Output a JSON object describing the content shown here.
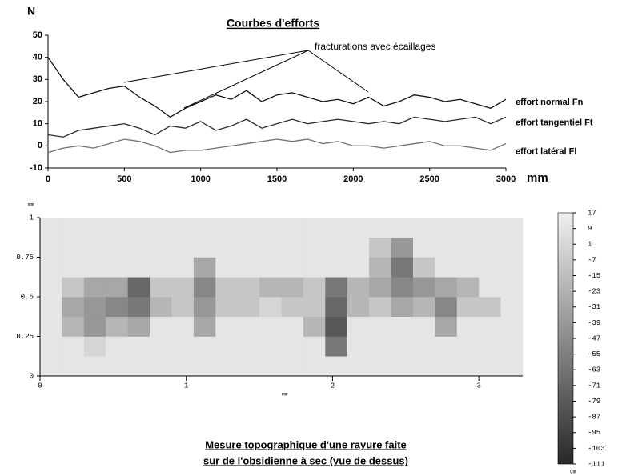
{
  "chart_data": [
    {
      "type": "line",
      "title": "Courbes d'efforts",
      "ylabel": "N",
      "xlabel": "mm",
      "annotation": "fracturations avec écaillages",
      "x": [
        0,
        100,
        200,
        300,
        400,
        500,
        600,
        700,
        800,
        900,
        1000,
        1100,
        1200,
        1300,
        1400,
        1500,
        1600,
        1700,
        1800,
        1900,
        2000,
        2100,
        2200,
        2300,
        2400,
        2500,
        2600,
        2700,
        2800,
        2900,
        3000
      ],
      "series": [
        {
          "name": "effort normal Fn",
          "color": "#111111",
          "values": [
            40,
            30,
            22,
            24,
            26,
            27,
            22,
            18,
            13,
            17,
            20,
            23,
            21,
            25,
            20,
            23,
            24,
            22,
            20,
            21,
            19,
            22,
            18,
            20,
            23,
            22,
            20,
            21,
            19,
            17,
            21
          ]
        },
        {
          "name": "effort tangentiel Ft",
          "color": "#2a2a2a",
          "values": [
            5,
            4,
            7,
            8,
            9,
            10,
            8,
            5,
            9,
            8,
            11,
            7,
            9,
            12,
            8,
            10,
            12,
            10,
            11,
            12,
            11,
            10,
            11,
            10,
            13,
            12,
            11,
            12,
            13,
            10,
            13
          ]
        },
        {
          "name": "effort latéral Fl",
          "color": "#707070",
          "values": [
            -3,
            -1,
            0,
            -1,
            1,
            3,
            2,
            0,
            -3,
            -2,
            -2,
            -1,
            0,
            1,
            2,
            3,
            2,
            3,
            1,
            2,
            0,
            0,
            -1,
            0,
            1,
            2,
            0,
            0,
            -1,
            -2,
            1
          ]
        }
      ],
      "xlim": [
        0,
        3000
      ],
      "xticks": [
        0,
        500,
        1000,
        1500,
        2000,
        2500,
        3000
      ],
      "ylim": [
        -10,
        50
      ],
      "yticks": [
        -10,
        0,
        10,
        20,
        30,
        40,
        50
      ]
    },
    {
      "type": "heatmap",
      "title": [
        "Mesure topographique d'une rayure faite",
        "sur de l'obsidienne à sec (vue de dessus)"
      ],
      "xlabel": "mm",
      "ylabel": "mm",
      "zlabel": "um",
      "xbins": [
        0,
        0.15,
        0.3,
        0.45,
        0.6,
        0.75,
        0.9,
        1.05,
        1.2,
        1.35,
        1.5,
        1.65,
        1.8,
        1.95,
        2.1,
        2.25,
        2.4,
        2.55,
        2.7,
        2.85,
        3,
        3.15,
        3.3
      ],
      "ybins": [
        0,
        0.125,
        0.25,
        0.375,
        0.5,
        0.625,
        0.75,
        0.875,
        1
      ],
      "z": [
        [
          10,
          10,
          10,
          10,
          10,
          10,
          10,
          10,
          10,
          10,
          10,
          10,
          10,
          10,
          10,
          10,
          10,
          10,
          10,
          10,
          10,
          10
        ],
        [
          10,
          10,
          0,
          10,
          10,
          10,
          10,
          10,
          10,
          10,
          10,
          10,
          10,
          -60,
          10,
          10,
          10,
          10,
          10,
          10,
          10,
          10
        ],
        [
          10,
          -20,
          -40,
          -20,
          -30,
          10,
          10,
          -30,
          10,
          10,
          10,
          10,
          -20,
          -80,
          10,
          10,
          10,
          10,
          -30,
          10,
          10,
          10
        ],
        [
          10,
          -30,
          -40,
          -50,
          -60,
          -20,
          -10,
          -40,
          -10,
          -10,
          0,
          -10,
          -10,
          -70,
          -20,
          -10,
          -30,
          -20,
          -50,
          -10,
          -10,
          10
        ],
        [
          10,
          -10,
          -30,
          -30,
          -70,
          -10,
          -10,
          -50,
          -10,
          -10,
          -20,
          -20,
          -10,
          -60,
          -20,
          -30,
          -50,
          -40,
          -30,
          -20,
          10,
          10
        ],
        [
          10,
          10,
          10,
          10,
          10,
          10,
          10,
          -30,
          10,
          10,
          10,
          10,
          10,
          10,
          10,
          -20,
          -60,
          -10,
          10,
          10,
          10,
          10
        ],
        [
          10,
          10,
          10,
          10,
          10,
          10,
          10,
          10,
          10,
          10,
          10,
          10,
          10,
          10,
          10,
          -10,
          -40,
          10,
          10,
          10,
          10,
          10
        ],
        [
          10,
          10,
          10,
          10,
          10,
          10,
          10,
          10,
          10,
          10,
          10,
          10,
          10,
          10,
          10,
          10,
          10,
          10,
          10,
          10,
          10,
          10
        ]
      ],
      "xlim": [
        0,
        3.3
      ],
      "xticks": [
        0,
        1,
        2,
        3
      ],
      "ylim": [
        0,
        1
      ],
      "yticks": [
        0,
        0.25,
        0.5,
        0.75,
        1
      ],
      "zlim": [
        -111,
        17
      ],
      "zticks": [
        17,
        9,
        1,
        -7,
        -15,
        -23,
        -31,
        -39,
        -47,
        -55,
        -63,
        -71,
        -79,
        -87,
        -95,
        -103,
        -111
      ]
    }
  ]
}
